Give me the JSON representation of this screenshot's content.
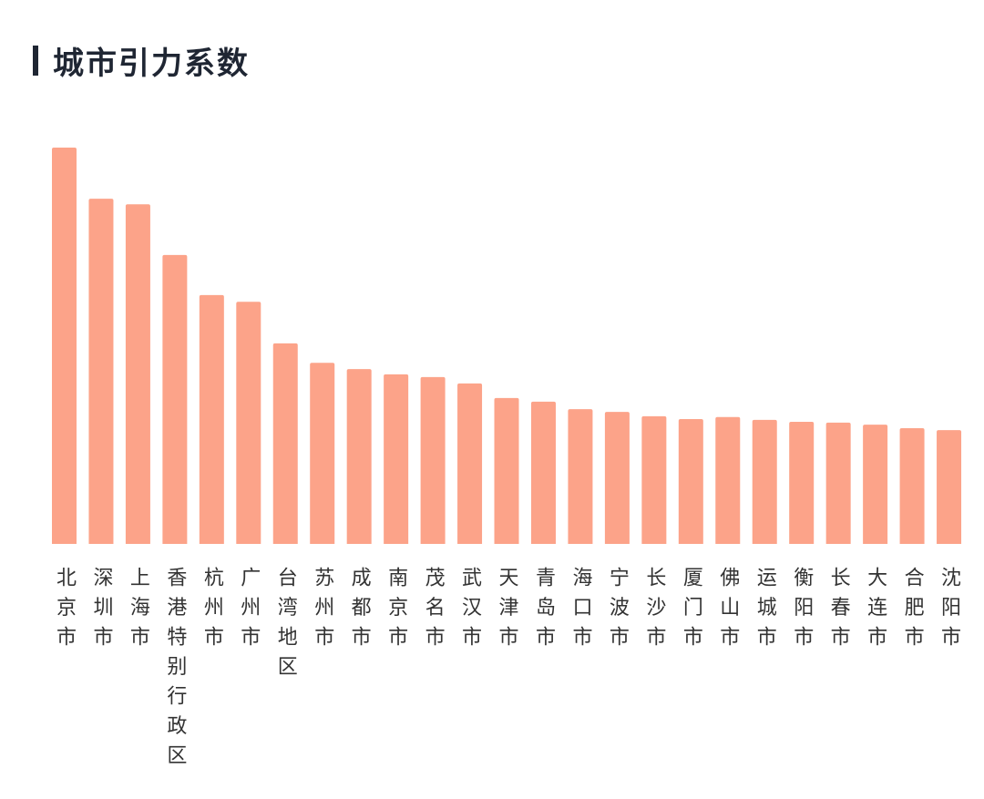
{
  "chart_data": {
    "type": "bar",
    "title": "城市引力系数",
    "categories": [
      "北京市",
      "深圳市",
      "上海市",
      "香港特别行政区",
      "杭州市",
      "广州市",
      "台湾地区",
      "苏州市",
      "成都市",
      "南京市",
      "茂名市",
      "武汉市",
      "天津市",
      "青岛市",
      "海口市",
      "宁波市",
      "长沙市",
      "厦门市",
      "佛山市",
      "运城市",
      "衡阳市",
      "长春市",
      "大连市",
      "合肥市",
      "沈阳市"
    ],
    "values": [
      100,
      87.1,
      85.7,
      72.9,
      62.8,
      61.1,
      50.6,
      45.7,
      44.1,
      42.8,
      42.1,
      40.5,
      36.8,
      35.9,
      34.0,
      33.3,
      32.2,
      31.5,
      32.0,
      31.3,
      30.8,
      30.6,
      30.1,
      29.2,
      28.7
    ],
    "color": "#fca389",
    "ylim": [
      0,
      100
    ]
  }
}
